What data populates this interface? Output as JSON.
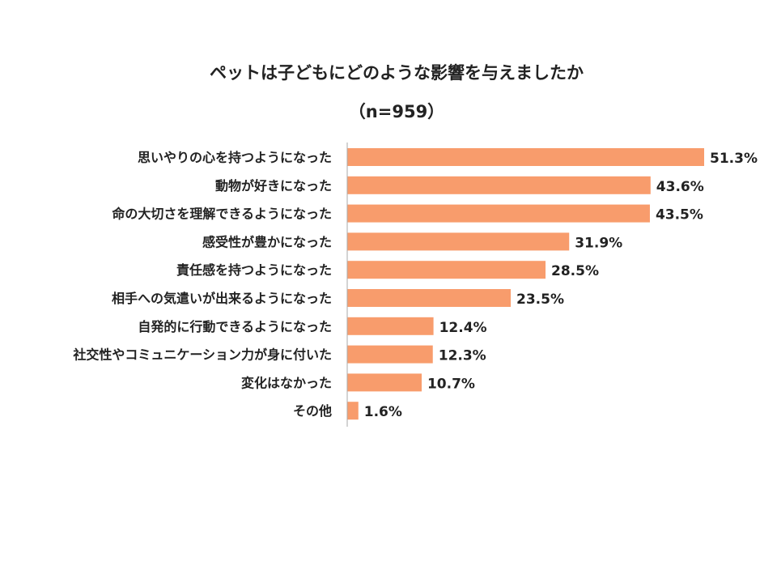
{
  "chart_data": {
    "type": "bar",
    "orientation": "horizontal",
    "title": "ペットは子どもにどのような影響を与えましたか",
    "subtitle": "（n=959）",
    "categories": [
      "思いやりの心を持つようになった",
      "動物が好きになった",
      "命の大切さを理解できるようになった",
      "感受性が豊かになった",
      "責任感を持つようになった",
      "相手への気遣いが出来るようになった",
      "自発的に行動できるようになった",
      "社交性やコミュニケーション力が身に付いた",
      "変化はなかった",
      "その他"
    ],
    "values": [
      51.3,
      43.6,
      43.5,
      31.9,
      28.5,
      23.5,
      12.4,
      12.3,
      10.7,
      1.6
    ],
    "value_labels": [
      "51.3%",
      "43.6%",
      "43.5%",
      "31.9%",
      "28.5%",
      "23.5%",
      "12.4%",
      "12.3%",
      "10.7%",
      "1.6%"
    ],
    "xlabel": "",
    "ylabel": "",
    "xlim": [
      0,
      60
    ],
    "grid": false,
    "bar_color": "#f89c6c"
  }
}
